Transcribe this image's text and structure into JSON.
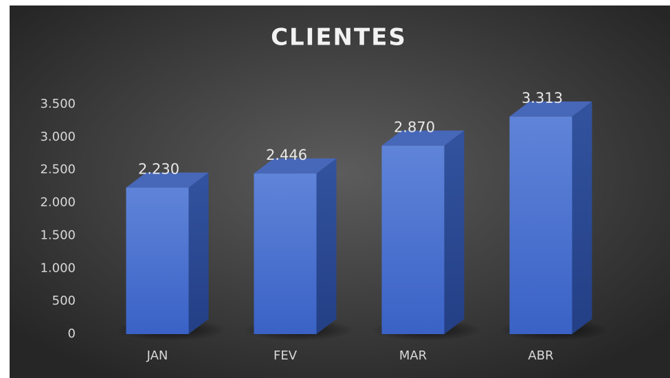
{
  "chart_data": {
    "type": "bar3d",
    "title": "CLIENTES",
    "categories": [
      "JAN",
      "FEV",
      "MAR",
      "ABR"
    ],
    "values": [
      2230,
      2446,
      2870,
      3313
    ],
    "value_labels": [
      "2.230",
      "2.446",
      "2.870",
      "3.313"
    ],
    "color": "#4472c4",
    "ylim": [
      0,
      3500
    ],
    "yticks": [
      0,
      500,
      {
        "value": 1000,
        "label": "1.000"
      },
      {
        "value": 1500,
        "label": "1.500"
      },
      {
        "value": 2000,
        "label": "2.000"
      },
      {
        "value": 2500,
        "label": "2.500"
      },
      {
        "value": 3000,
        "label": "3.000"
      },
      {
        "value": 3500,
        "label": "3.500"
      }
    ]
  }
}
